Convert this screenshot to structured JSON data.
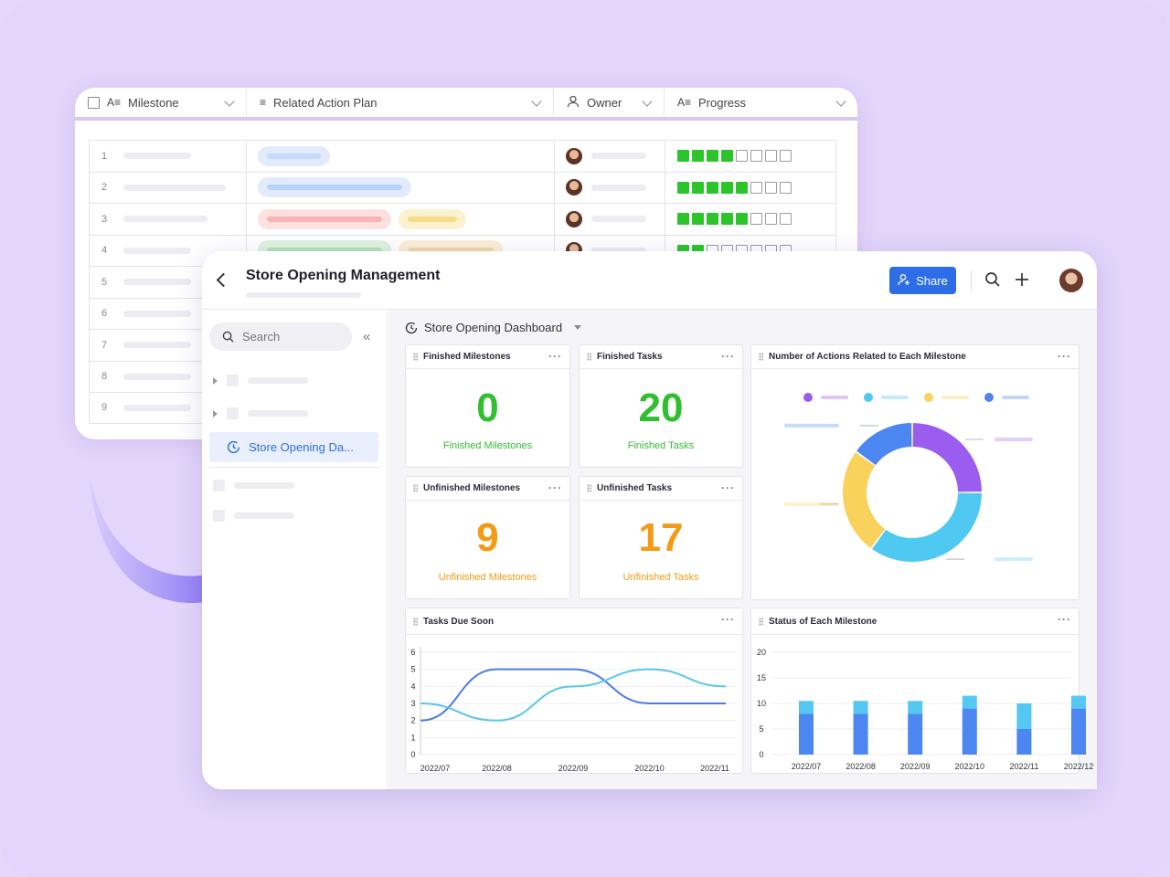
{
  "table": {
    "headers": [
      "Milestone",
      "Related Action Plan",
      "Owner",
      "Progress"
    ],
    "row_numbers": [
      "1",
      "2",
      "3",
      "4",
      "5",
      "6",
      "7",
      "8",
      "9"
    ]
  },
  "app": {
    "title": "Store Opening Management",
    "share_label": "Share"
  },
  "sidebar": {
    "search_placeholder": "Search",
    "active_item": "Store Opening Da..."
  },
  "dashboard": {
    "title": "Store Opening Dashboard",
    "widgets": {
      "finished_milestones": {
        "title": "Finished Milestones",
        "value": "0",
        "label": "Finished Milestones"
      },
      "finished_tasks": {
        "title": "Finished Tasks",
        "value": "20",
        "label": "Finished Tasks"
      },
      "unfinished_milestones": {
        "title": "Unfinished Milestones",
        "value": "9",
        "label": "Unfinished Milestones"
      },
      "unfinished_tasks": {
        "title": "Unfinished Tasks",
        "value": "17",
        "label": "Unfinished Tasks"
      },
      "actions_per_milestone": {
        "title": "Number of Actions Related to Each Milestone"
      },
      "tasks_due_soon": {
        "title": "Tasks Due Soon"
      },
      "status_each_milestone": {
        "title": "Status of Each Milestone"
      }
    }
  },
  "colors": {
    "accent": "#2d6ee8",
    "finished": "#2fbf2f",
    "unfinished": "#f59a16",
    "progress_on": "#2bc52b"
  },
  "progress": [
    4,
    5,
    5,
    2
  ],
  "chart_data": [
    {
      "type": "pie",
      "title": "Number of Actions Related to Each Milestone",
      "values": [
        25,
        35,
        25,
        15
      ],
      "colors": [
        "#9b5cf0",
        "#4fc8f2",
        "#f8d25a",
        "#4c86f0"
      ]
    },
    {
      "type": "line",
      "title": "Tasks Due Soon",
      "categories": [
        "2022/07",
        "2022/08",
        "2022/09",
        "2022/10",
        "2022/11"
      ],
      "ylim": [
        0,
        6
      ],
      "yticks": [
        "0",
        "1",
        "2",
        "3",
        "4",
        "5",
        "6"
      ],
      "series": [
        {
          "color": "#4c7be6",
          "values": [
            2,
            5,
            5,
            3,
            3
          ]
        },
        {
          "color": "#55c6ec",
          "values": [
            3,
            2,
            4,
            5,
            4
          ]
        }
      ]
    },
    {
      "type": "bar",
      "title": "Status of Each Milestone",
      "categories": [
        "2022/07",
        "2022/08",
        "2022/09",
        "2022/10",
        "2022/11",
        "2022/12"
      ],
      "ylim": [
        0,
        20
      ],
      "yticks": [
        "0",
        "5",
        "10",
        "15",
        "20"
      ],
      "series": [
        {
          "color": "#4c86f0",
          "values": [
            8,
            8,
            8,
            9,
            5,
            9
          ]
        },
        {
          "color": "#55c8f2",
          "values": [
            2.5,
            2.5,
            2.5,
            2.5,
            5,
            2.5
          ]
        }
      ]
    }
  ]
}
